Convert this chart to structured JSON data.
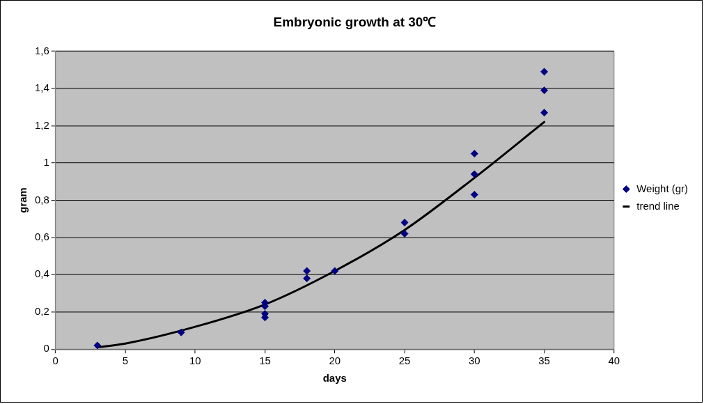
{
  "chart_data": {
    "type": "scatter",
    "title": "Embryonic growth at 30℃",
    "xlabel": "days",
    "ylabel": "gram",
    "xlim": [
      0,
      40
    ],
    "xticks": [
      0,
      5,
      10,
      15,
      20,
      25,
      30,
      35,
      40
    ],
    "ylim": [
      0,
      1.6
    ],
    "yticks": [
      0,
      {
        "value": 0.2,
        "label": "0,2"
      },
      {
        "value": 0.4,
        "label": "0,4"
      },
      {
        "value": 0.6,
        "label": "0,6"
      },
      {
        "value": 0.8,
        "label": "0,8"
      },
      1,
      {
        "value": 1.2,
        "label": "1,2"
      },
      {
        "value": 1.4,
        "label": "1,4"
      },
      {
        "value": 1.6,
        "label": "1,6"
      }
    ],
    "grid": "y",
    "legend": "right",
    "series": [
      {
        "name": "Weight (gr)",
        "marker": "diamond",
        "color": "#000080",
        "x": [
          3,
          9,
          15,
          15,
          15,
          15,
          18,
          18,
          20,
          25,
          25,
          30,
          30,
          30,
          35,
          35,
          35
        ],
        "values": [
          0.02,
          0.09,
          0.25,
          0.23,
          0.19,
          0.17,
          0.42,
          0.38,
          0.42,
          0.68,
          0.62,
          1.05,
          0.94,
          0.83,
          1.49,
          1.39,
          1.27
        ]
      },
      {
        "name": "trend line",
        "type": "line",
        "marker": "none",
        "color": "#000000",
        "line_style": "solid",
        "x": [
          3,
          5,
          10,
          15,
          20,
          25,
          30,
          35
        ],
        "values": [
          0.01,
          0.03,
          0.12,
          0.24,
          0.42,
          0.64,
          0.92,
          1.22
        ]
      }
    ]
  }
}
